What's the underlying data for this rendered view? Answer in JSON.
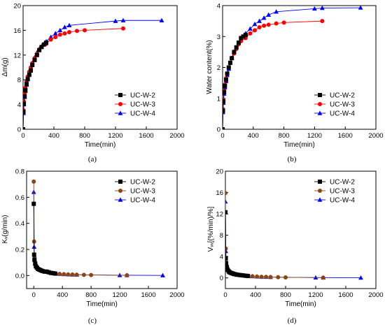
{
  "chart_data": [
    {
      "type": "line",
      "panel_label": "(a)",
      "xlabel": "Time(min)",
      "ylabel": "Δm(g)",
      "xlim": [
        0,
        2000
      ],
      "ylim": [
        0,
        20
      ],
      "x_ticks": [
        "0",
        "400",
        "800",
        "1200",
        "1600",
        "2000"
      ],
      "y_ticks": [
        "0",
        "4",
        "8",
        "12",
        "16",
        "20"
      ],
      "legend_position": "bottom-right",
      "series": [
        {
          "name": "UC-W-2",
          "color": "#000000",
          "marker": "square",
          "x": [
            0,
            5,
            10,
            20,
            30,
            45,
            60,
            80,
            100,
            120,
            150,
            180,
            210,
            240,
            270,
            300
          ],
          "y": [
            0,
            2.8,
            4.1,
            5.3,
            6.3,
            7.3,
            8.1,
            8.8,
            9.5,
            10.4,
            11.2,
            12.0,
            12.8,
            13.3,
            13.7,
            14.0
          ]
        },
        {
          "name": "UC-W-3",
          "color": "#ff0000",
          "marker": "circle",
          "x": [
            0,
            5,
            10,
            20,
            30,
            45,
            60,
            80,
            100,
            120,
            150,
            180,
            210,
            240,
            300,
            360,
            420,
            480,
            540,
            600,
            700,
            800,
            1300
          ],
          "y": [
            0,
            3.1,
            4.5,
            5.8,
            6.7,
            7.7,
            8.5,
            9.3,
            10.0,
            10.7,
            11.5,
            12.2,
            12.9,
            13.3,
            13.8,
            14.5,
            14.9,
            15.3,
            15.5,
            15.7,
            15.9,
            16.0,
            16.3
          ]
        },
        {
          "name": "UC-W-4",
          "color": "#0000ff",
          "marker": "triangle",
          "x": [
            0,
            5,
            10,
            20,
            30,
            45,
            60,
            80,
            100,
            120,
            150,
            180,
            210,
            240,
            270,
            300,
            360,
            420,
            480,
            540,
            600,
            1200,
            1300,
            1800
          ],
          "y": [
            0,
            2.6,
            4.0,
            5.2,
            6.2,
            7.2,
            8.3,
            9.0,
            9.9,
            10.7,
            11.6,
            12.4,
            13.0,
            13.4,
            13.8,
            14.2,
            14.9,
            15.5,
            16.0,
            16.5,
            16.8,
            17.5,
            17.6,
            17.6
          ]
        }
      ]
    },
    {
      "type": "line",
      "panel_label": "(b)",
      "xlabel": "Time(min)",
      "ylabel": "Water content(%)",
      "xlim": [
        0,
        2000
      ],
      "ylim": [
        0,
        4
      ],
      "x_ticks": [
        "0",
        "400",
        "800",
        "1200",
        "1600",
        "2000"
      ],
      "y_ticks": [
        "0",
        "1",
        "2",
        "3",
        "4"
      ],
      "legend_position": "bottom-right",
      "series": [
        {
          "name": "UC-W-2",
          "color": "#000000",
          "marker": "square",
          "x": [
            0,
            5,
            10,
            20,
            30,
            45,
            60,
            80,
            100,
            120,
            150,
            180,
            210,
            240,
            270,
            300
          ],
          "y": [
            0,
            0.6,
            0.9,
            1.2,
            1.4,
            1.6,
            1.8,
            2.0,
            2.15,
            2.3,
            2.5,
            2.65,
            2.8,
            2.95,
            3.0,
            3.05
          ]
        },
        {
          "name": "UC-W-3",
          "color": "#ff0000",
          "marker": "circle",
          "x": [
            0,
            5,
            10,
            20,
            30,
            45,
            60,
            80,
            100,
            120,
            150,
            180,
            210,
            240,
            300,
            360,
            420,
            480,
            540,
            600,
            700,
            800,
            1300
          ],
          "y": [
            0,
            0.65,
            0.95,
            1.25,
            1.45,
            1.65,
            1.8,
            2.0,
            2.15,
            2.3,
            2.45,
            2.6,
            2.75,
            2.85,
            2.95,
            3.1,
            3.2,
            3.3,
            3.35,
            3.38,
            3.42,
            3.45,
            3.5
          ]
        },
        {
          "name": "UC-W-4",
          "color": "#0000ff",
          "marker": "triangle",
          "x": [
            0,
            5,
            10,
            20,
            30,
            45,
            60,
            80,
            100,
            120,
            150,
            180,
            210,
            240,
            270,
            300,
            360,
            420,
            480,
            540,
            600,
            700,
            1200,
            1300,
            1800
          ],
          "y": [
            0,
            0.55,
            0.85,
            1.15,
            1.35,
            1.55,
            1.75,
            1.95,
            2.15,
            2.3,
            2.5,
            2.65,
            2.8,
            2.9,
            3.0,
            3.1,
            3.25,
            3.4,
            3.5,
            3.6,
            3.7,
            3.8,
            3.9,
            3.92,
            3.93
          ]
        }
      ]
    },
    {
      "type": "line",
      "panel_label": "(c)",
      "xlabel": "Time(min)",
      "ylabel": "Kᵥ(g/min)",
      "xlim": [
        -100,
        2000
      ],
      "ylim": [
        -0.1,
        0.8
      ],
      "x_ticks": [
        "0",
        "400",
        "800",
        "1200",
        "1600",
        "2000"
      ],
      "y_ticks": [
        "0.0",
        "0.2",
        "0.4",
        "0.6",
        "0.8"
      ],
      "legend_position": "top-right",
      "series": [
        {
          "name": "UC-W-2",
          "color": "#000000",
          "marker": "square",
          "x": [
            0,
            5,
            10,
            20,
            30,
            45,
            60,
            80,
            100,
            120,
            150,
            180,
            210,
            240,
            270,
            300
          ],
          "y": [
            0.55,
            0.16,
            0.12,
            0.09,
            0.07,
            0.06,
            0.05,
            0.045,
            0.04,
            0.035,
            0.03,
            0.03,
            0.025,
            0.02,
            0.018,
            0.015
          ]
        },
        {
          "name": "UC-W-3",
          "color": "#8B4513",
          "marker": "circle",
          "x": [
            0,
            5,
            10,
            20,
            30,
            45,
            60,
            80,
            100,
            120,
            150,
            180,
            210,
            240,
            300,
            360,
            420,
            480,
            540,
            600,
            700,
            800,
            1300
          ],
          "y": [
            0.72,
            0.26,
            0.14,
            0.1,
            0.08,
            0.065,
            0.055,
            0.045,
            0.04,
            0.035,
            0.03,
            0.028,
            0.025,
            0.02,
            0.015,
            0.012,
            0.01,
            0.008,
            0.007,
            0.006,
            0.005,
            0.004,
            0.002
          ]
        },
        {
          "name": "UC-W-4",
          "color": "#0000ff",
          "marker": "triangle",
          "x": [
            0,
            5,
            10,
            20,
            30,
            45,
            60,
            80,
            100,
            120,
            150,
            180,
            210,
            240,
            270,
            300,
            360,
            420,
            480,
            540,
            600,
            1200,
            1300,
            1800
          ],
          "y": [
            0.64,
            0.22,
            0.13,
            0.095,
            0.075,
            0.06,
            0.05,
            0.045,
            0.04,
            0.035,
            0.03,
            0.03,
            0.025,
            0.02,
            0.018,
            0.015,
            0.012,
            0.01,
            0.008,
            0.007,
            0.006,
            0.002,
            0.002,
            0.001
          ]
        }
      ]
    },
    {
      "type": "line",
      "panel_label": "(d)",
      "xlabel": "Time(min)",
      "ylabel": "Vᵥᵥ[(%/min)/%]",
      "xlim": [
        0,
        2000
      ],
      "ylim": [
        -2,
        20
      ],
      "x_ticks": [
        "0",
        "400",
        "800",
        "1200",
        "1600",
        "2000"
      ],
      "y_ticks": [
        "0",
        "4",
        "8",
        "12",
        "16",
        "20"
      ],
      "legend_position": "top-right",
      "series": [
        {
          "name": "UC-W-2",
          "color": "#000000",
          "marker": "square",
          "x": [
            0,
            5,
            10,
            20,
            30,
            45,
            60,
            80,
            100,
            120,
            150,
            180,
            210,
            240,
            270,
            300
          ],
          "y": [
            12.3,
            3.7,
            2.7,
            2.0,
            1.5,
            1.2,
            1.0,
            0.9,
            0.8,
            0.7,
            0.6,
            0.55,
            0.5,
            0.45,
            0.4,
            0.35
          ]
        },
        {
          "name": "UC-W-3",
          "color": "#8B4513",
          "marker": "circle",
          "x": [
            0,
            5,
            10,
            20,
            30,
            45,
            60,
            80,
            100,
            120,
            150,
            180,
            210,
            240,
            300,
            360,
            420,
            480,
            540,
            600,
            700,
            800,
            1300
          ],
          "y": [
            15.9,
            5.5,
            3.0,
            2.2,
            1.7,
            1.4,
            1.2,
            1.0,
            0.9,
            0.8,
            0.7,
            0.6,
            0.55,
            0.5,
            0.4,
            0.3,
            0.25,
            0.2,
            0.18,
            0.15,
            0.12,
            0.1,
            0.05
          ]
        },
        {
          "name": "UC-W-4",
          "color": "#0000ff",
          "marker": "triangle",
          "x": [
            0,
            5,
            10,
            20,
            30,
            45,
            60,
            80,
            100,
            120,
            150,
            180,
            210,
            240,
            270,
            300,
            360,
            420,
            480,
            540,
            600,
            1200,
            1300,
            1800
          ],
          "y": [
            14.3,
            5.0,
            2.8,
            2.1,
            1.6,
            1.3,
            1.1,
            0.95,
            0.85,
            0.75,
            0.65,
            0.6,
            0.5,
            0.45,
            0.4,
            0.35,
            0.3,
            0.25,
            0.2,
            0.18,
            0.15,
            0.05,
            0.05,
            0.02
          ]
        }
      ]
    }
  ]
}
